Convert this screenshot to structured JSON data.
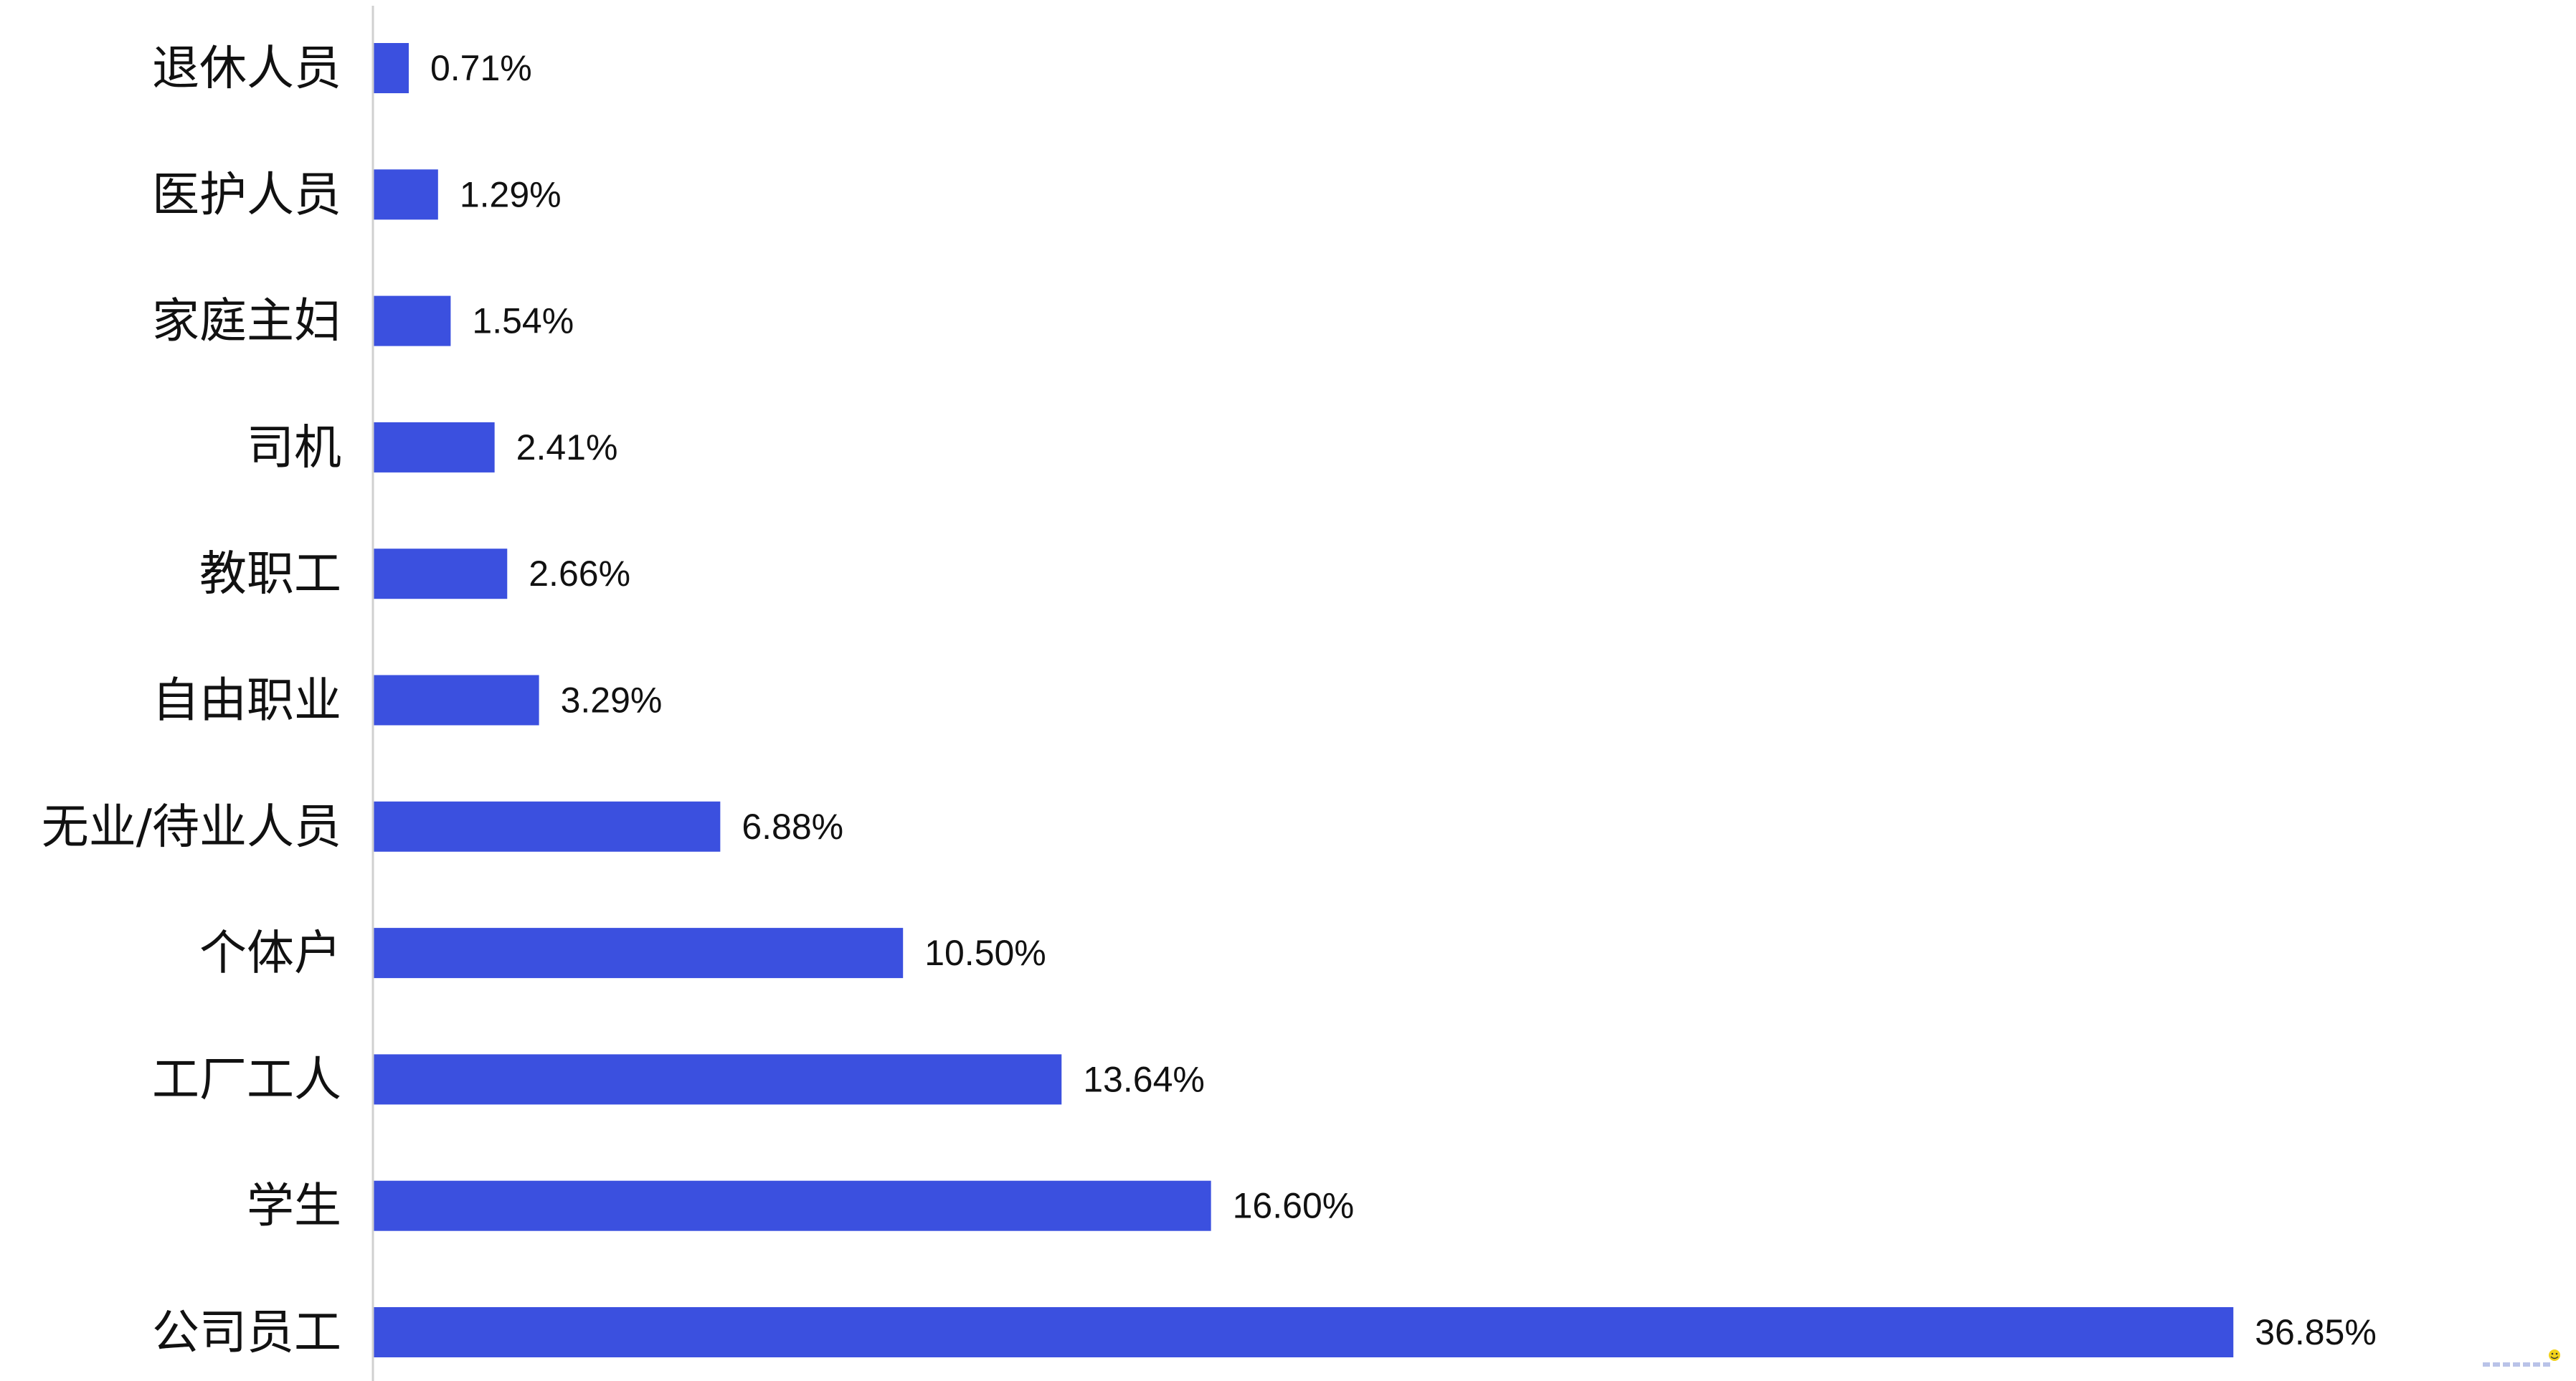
{
  "chart_data": {
    "type": "bar",
    "orientation": "horizontal",
    "categories": [
      "退休人员",
      "医护人员",
      "家庭主妇",
      "司机",
      "教职工",
      "自由职业",
      "无业/待业人员",
      "个体户",
      "工厂工人",
      "学生",
      "公司员工"
    ],
    "values": [
      0.71,
      1.29,
      1.54,
      2.41,
      2.66,
      3.29,
      6.88,
      10.5,
      13.64,
      16.6,
      36.85
    ],
    "data_labels": [
      "0.71%",
      "1.29%",
      "1.54%",
      "2.41%",
      "2.66%",
      "3.29%",
      "6.88%",
      "10.50%",
      "13.64%",
      "16.60%",
      "36.85%"
    ],
    "unit": "%",
    "xlim": [
      0,
      40
    ],
    "grid": false,
    "legend": "none",
    "bar_color": "#3B50DF"
  },
  "watermark": {
    "icon": "smiley-icon"
  }
}
